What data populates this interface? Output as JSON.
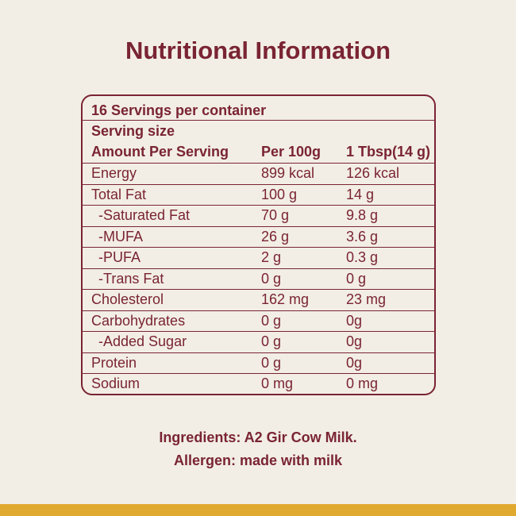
{
  "title": "Nutritional Information",
  "table": {
    "servings": "16 Servings per container",
    "serving_size": "Serving size",
    "columns": [
      "Amount Per Serving",
      "Per 100g",
      "1 Tbsp(14 g)"
    ],
    "rows": [
      [
        "Energy",
        "899 kcal",
        "126 kcal"
      ],
      [
        "Total Fat",
        "100 g",
        "14 g"
      ],
      [
        "-Saturated Fat",
        "70 g",
        "9.8 g"
      ],
      [
        "-MUFA",
        "26 g",
        "3.6 g"
      ],
      [
        "-PUFA",
        "2 g",
        "0.3 g"
      ],
      [
        "-Trans Fat",
        "0 g",
        "0 g"
      ],
      [
        "Cholesterol",
        "162 mg",
        "23 mg"
      ],
      [
        "Carbohydrates",
        "0 g",
        "0g"
      ],
      [
        "-Added Sugar",
        "0 g",
        "0g"
      ],
      [
        "Protein",
        "0 g",
        "0g"
      ],
      [
        "Sodium",
        "0 mg",
        "0 mg"
      ]
    ]
  },
  "footer": {
    "ingredients": "Ingredients: A2 Gir Cow Milk.",
    "allergen": "Allergen: made with milk"
  }
}
